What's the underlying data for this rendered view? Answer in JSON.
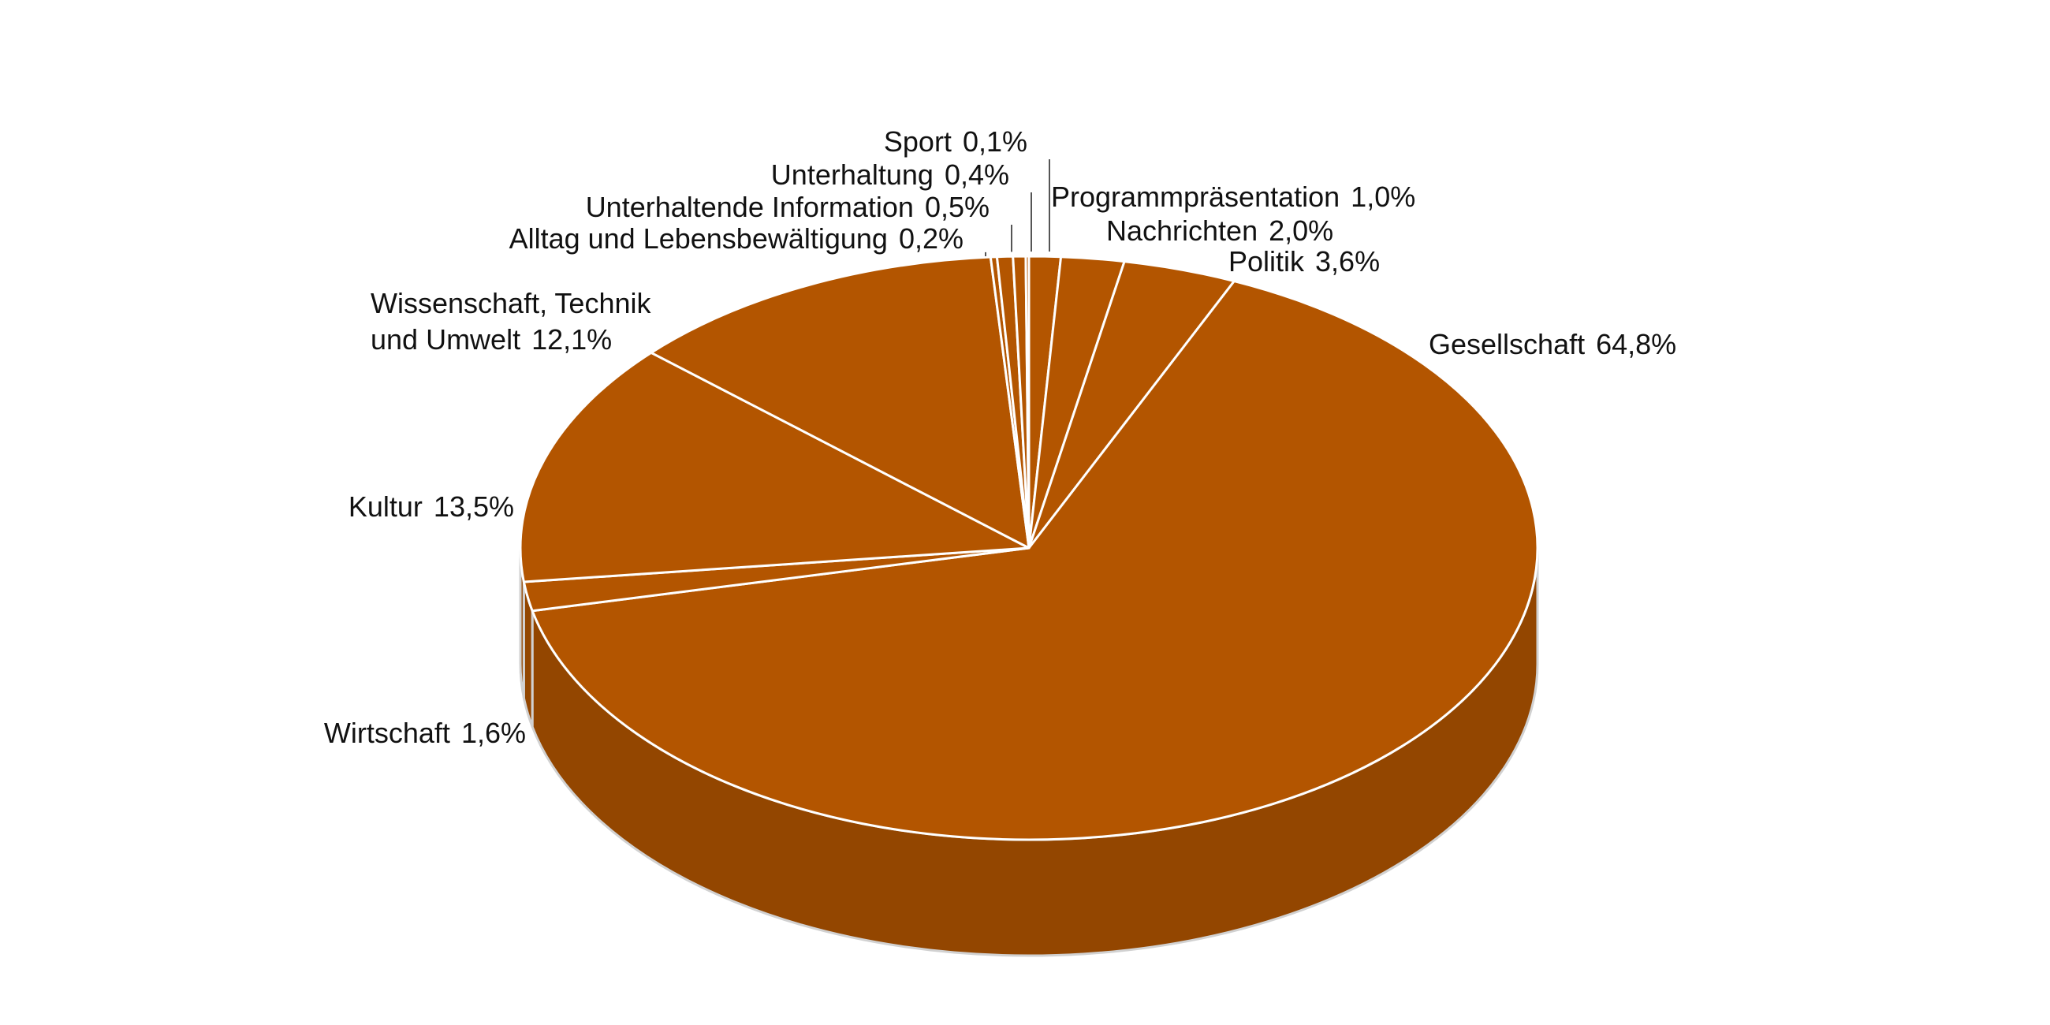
{
  "chart_data": {
    "type": "pie",
    "color": "#b35500",
    "categories": [
      "Programmpräsentation",
      "Nachrichten",
      "Politik",
      "Gesellschaft",
      "Wirtschaft",
      "Kultur",
      "Wissenschaft, Technik und Umwelt",
      "Alltag und Lebensbewältigung",
      "Unterhaltende Information",
      "Unterhaltung",
      "Sport"
    ],
    "values": [
      1.0,
      2.0,
      3.6,
      64.8,
      1.6,
      13.5,
      12.1,
      0.2,
      0.5,
      0.4,
      0.1
    ],
    "value_labels": [
      "1,0%",
      "2,0%",
      "3,6%",
      "64,8%",
      "1,6%",
      "13,5%",
      "12,1%",
      "0,2%",
      "0,5%",
      "0,4%",
      "0,1%"
    ]
  }
}
